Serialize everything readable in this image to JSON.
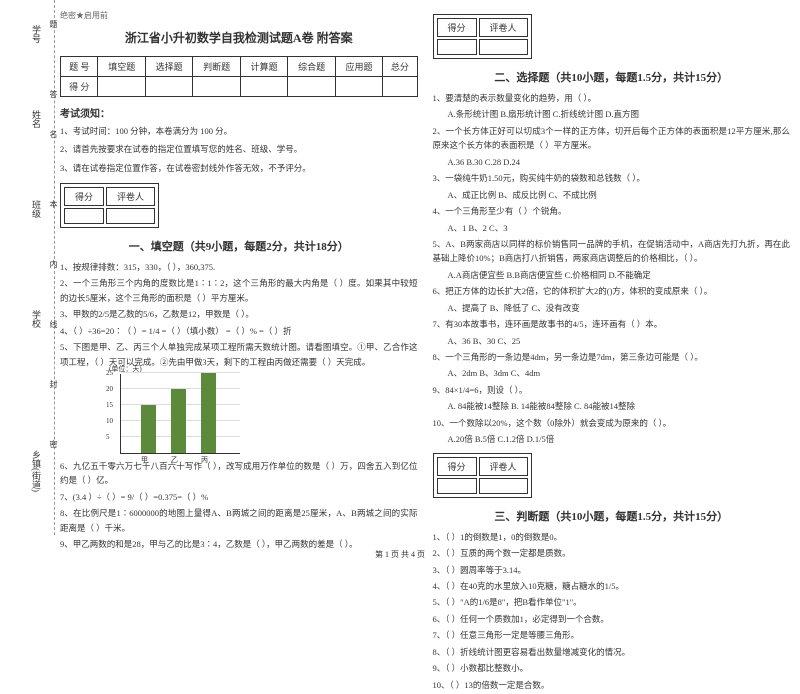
{
  "margin": {
    "labels": [
      "学号",
      "姓名",
      "班级",
      "学校",
      "乡镇(街道)"
    ],
    "verts": [
      "题",
      "答",
      "名",
      "本",
      "内",
      "线",
      "封",
      "密"
    ]
  },
  "secret": "绝密★启用前",
  "title": "浙江省小升初数学自我检测试题A卷 附答案",
  "header_cols": [
    "题 号",
    "填空题",
    "选择题",
    "判断题",
    "计算题",
    "综合题",
    "应用题",
    "总分"
  ],
  "header_row2": "得 分",
  "notice_h": "考试须知：",
  "notices": [
    "1、考试时间：100 分钟，本卷满分为 100 分。",
    "2、请首先按要求在试卷的指定位置填写您的姓名、班级、学号。",
    "3、请在试卷指定位置作答，在试卷密封线外作答无效，不予评分。"
  ],
  "scorebox": [
    "得分",
    "评卷人"
  ],
  "sections": {
    "s1": "一、填空题（共9小题，每题2分，共计18分）",
    "s2": "二、选择题（共10小题，每题1.5分，共计15分）",
    "s3": "三、判断题（共10小题，每题1.5分，共计15分）"
  },
  "fill": [
    "1、按规律排数：315，330，（  ），360,375.",
    "2、一个三角形三个内角的度数比是1∶1∶2，这个三角形的最大内角是（  ）度。如果其中较短的边长5厘米，这个三角形的面积是（  ）平方厘米。",
    "3、甲数的2/5是乙数的5/6，乙数是12，甲数是（  ）。",
    "4、（  ）÷36=20∶（  ）= 1/4 =（  ）（填小数） =（  ）% =（  ）折",
    "5、下图是甲、乙、丙三个人单独完成某项工程所需天数统计图。请看图填空。①甲、乙合作这项工程，（  ）天可以完成。②先由甲做3天，剩下的工程由丙做还需要（  ）天完成。",
    "6、九亿五千零六万七千八百六十写作（      ），改写成用万作单位的数是（   ）万，四舍五入到亿位约是（   ）亿。",
    "7、(3.4 ）÷（   ）= 9/（  ）=0.375=（  ）%",
    "8、在比例尺是1∶6000000的地图上量得A、B两城之间的距离是25厘米，A、B两城之间的实际距离是（   ）千米。",
    "9、甲乙两数的和是28，甲与乙的比是3∶4，乙数是（  ），甲乙两数的差是（  ）。"
  ],
  "chart": {
    "ylabel": "(单位：天)",
    "yticks": [
      "5",
      "10",
      "15",
      "20",
      "25"
    ],
    "bars": [
      {
        "label": "甲",
        "h": 48,
        "x": 20
      },
      {
        "label": "乙",
        "h": 64,
        "x": 50
      },
      {
        "label": "丙",
        "h": 80,
        "x": 80
      }
    ],
    "color": "#5b8a3a"
  },
  "choice": [
    {
      "q": "1、要清楚的表示数量变化的趋势，用（  ）。",
      "o": "A.条形统计图 B.扇形统计图 C.折线统计图 D.直方图"
    },
    {
      "q": "2、一个长方体正好可以切成3个一样的正方体，切开后每个正方体的表面积是12平方厘米,那么原来这个长方体的表面积是（  ）平方厘米。",
      "o": "A.36    B.30    C.28    D.24"
    },
    {
      "q": "3、一袋纯牛奶1.50元，购买纯牛奶的袋数和总钱数（  ）。",
      "o": "A、成正比例   B、成反比例   C、不成比例"
    },
    {
      "q": "4、一个三角形至少有（  ）个锐角。",
      "o": "A、1    B、2   C、3"
    },
    {
      "q": "5、A、B两家商店以同样的标价销售同一品牌的手机，在促销活动中，A商店先打九折，再在此基础上降价10%；B商店打八折销售，两家商店调整后的价格相比，（  ）。",
      "o": "A.A商店便宜些   B.B商店便宜些    C.价格相同    D.不能确定"
    },
    {
      "q": "6、把正方体的边长扩大2倍，它的体积扩大2的()方，体积的变成原来（  ）。",
      "o": "A、提高了   B、降低了   C、没有改变"
    },
    {
      "q": "7、有30本故事书，连环画是故事书的4/5，连环画有（  ）本。",
      "o": "A、36   B、30   C、25"
    },
    {
      "q": "8、一个三角形的一条边是4dm，另一条边是7dm，第三条边可能是（  ）。",
      "o": "A、2dm    B、3dm    C、4dm"
    },
    {
      "q": "9、84×1/4=6，则设（ ）。",
      "o": "A. 84能被14整除   B. 14能被84整除   C. 84能被14整除"
    },
    {
      "q": "10、一个数除以20%，这个数（0除外）就会变成为原来的（   ）。",
      "o": "A.20倍     B.5倍     C.1.2倍    D.1/5倍"
    }
  ],
  "judge": [
    "1、（  ）1的倒数是1，0的倒数是0。",
    "2、（  ）互质的两个数一定都是质数。",
    "3、（  ）圆周率等于3.14。",
    "4、（  ）在40克的水里放入10克糖，糖占糖水的1/5。",
    "5、（  ）\"A的1/6是8\"，把B看作单位\"1\"。",
    "6、（  ）任何一个质数加1，必定得到一个合数。",
    "7、（  ）任意三角形一定是等腰三角形。",
    "8、（  ）折线统计图更容易看出数量增减变化的情况。",
    "9、（  ）小数都比整数小。",
    "10、（  ）13的倍数一定是合数。"
  ],
  "footer": "第 1 页 共 4 页"
}
